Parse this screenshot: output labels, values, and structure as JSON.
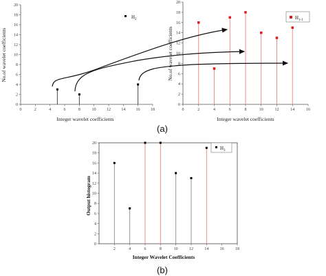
{
  "captions": {
    "a": "(a)",
    "b": "(b)"
  },
  "chart_data": [
    {
      "type": "scatter",
      "xlabel": "Integer wavelet coefficients",
      "ylabel": "No.of wavelet coefficients",
      "xlim": [
        0,
        18
      ],
      "ylim": [
        0,
        20
      ],
      "xticks": [
        0,
        2,
        4,
        6,
        8,
        10,
        12,
        14,
        16,
        18
      ],
      "yticks": [
        0,
        2,
        4,
        6,
        8,
        10,
        12,
        14,
        16,
        18,
        20
      ],
      "legend": {
        "label": "H",
        "sub": "2",
        "position": "top-left",
        "color": "#000000"
      },
      "color": "#000000",
      "x": [
        5,
        8,
        16
      ],
      "y": [
        3,
        2,
        4
      ]
    },
    {
      "type": "scatter",
      "xlabel": "Integer wavelet coefficients",
      "ylabel": "No.of wavelet coefficients",
      "xlim": [
        0,
        16
      ],
      "ylim": [
        0,
        20
      ],
      "xticks": [
        0,
        2,
        4,
        6,
        8,
        10,
        12,
        14,
        16
      ],
      "yticks": [
        0,
        2,
        4,
        6,
        8,
        10,
        12,
        14,
        16,
        18,
        20
      ],
      "legend": {
        "label": "H",
        "sub": "1-1",
        "position": "top-right",
        "color": "#e31a1c"
      },
      "color": "#e31a1c",
      "x": [
        2,
        4,
        6,
        8,
        10,
        12,
        14
      ],
      "y": [
        16,
        7,
        17,
        18,
        14,
        13,
        15
      ]
    },
    {
      "type": "scatter",
      "xlabel": "Integer Wavelet Coefficients",
      "ylabel": "Output histogram",
      "xlim": [
        0,
        18
      ],
      "ylim": [
        0,
        20
      ],
      "xticks": [
        2,
        4,
        6,
        8,
        10,
        12,
        14,
        16,
        18
      ],
      "yticks": [
        0,
        2,
        4,
        6,
        8,
        10,
        12,
        14,
        16,
        18,
        20
      ],
      "legend": {
        "label": "H",
        "sub": "3",
        "position": "top-right",
        "color": "#000000"
      },
      "color": "#000000",
      "x": [
        2,
        4,
        6,
        8,
        10,
        12,
        14
      ],
      "y": [
        16,
        7,
        20,
        20,
        14,
        13,
        19
      ],
      "stem_colors": [
        "#888888",
        "#888888",
        "#ef7f7f",
        "#ef7f7f",
        "#888888",
        "#888888",
        "#ef7f7f"
      ]
    }
  ]
}
